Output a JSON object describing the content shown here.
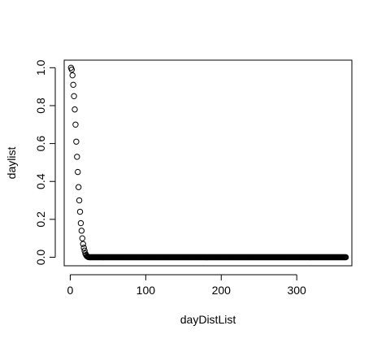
{
  "chart_data": {
    "type": "scatter",
    "title": "",
    "xlabel": "dayDistList",
    "ylabel": "daylist",
    "xlim": [
      -8,
      373
    ],
    "ylim": [
      -0.045,
      1.04
    ],
    "x_ticks": [
      0,
      100,
      200,
      300
    ],
    "x_tick_labels": [
      "0",
      "100",
      "200",
      "300"
    ],
    "y_ticks": [
      0,
      0.2,
      0.4,
      0.6,
      0.8,
      1.0
    ],
    "y_tick_labels": [
      "0.0",
      "0.2",
      "0.4",
      "0.6",
      "0.8",
      "1.0"
    ],
    "grid": false,
    "legend": "none",
    "marker": "open-circle",
    "colors": {
      "marker": "#000000",
      "frame": "#000000",
      "background": "#ffffff"
    },
    "series": [
      {
        "x": [
          1,
          2,
          3,
          4,
          5,
          6,
          7,
          8,
          9,
          10,
          11,
          12,
          13,
          14,
          15,
          16,
          17,
          18,
          19,
          20,
          21,
          22,
          23,
          24,
          25,
          26,
          27,
          28,
          29,
          30
        ],
        "y": [
          1.0,
          0.99,
          0.96,
          0.91,
          0.85,
          0.78,
          0.7,
          0.61,
          0.53,
          0.45,
          0.37,
          0.3,
          0.24,
          0.18,
          0.14,
          0.1,
          0.07,
          0.05,
          0.035,
          0.02,
          0.012,
          0.006,
          0.003,
          0.001,
          0,
          0,
          0,
          0,
          0,
          0
        ]
      },
      {
        "x_start": 31,
        "x_end": 365,
        "x_step": 1,
        "y_constant": 0
      }
    ]
  }
}
